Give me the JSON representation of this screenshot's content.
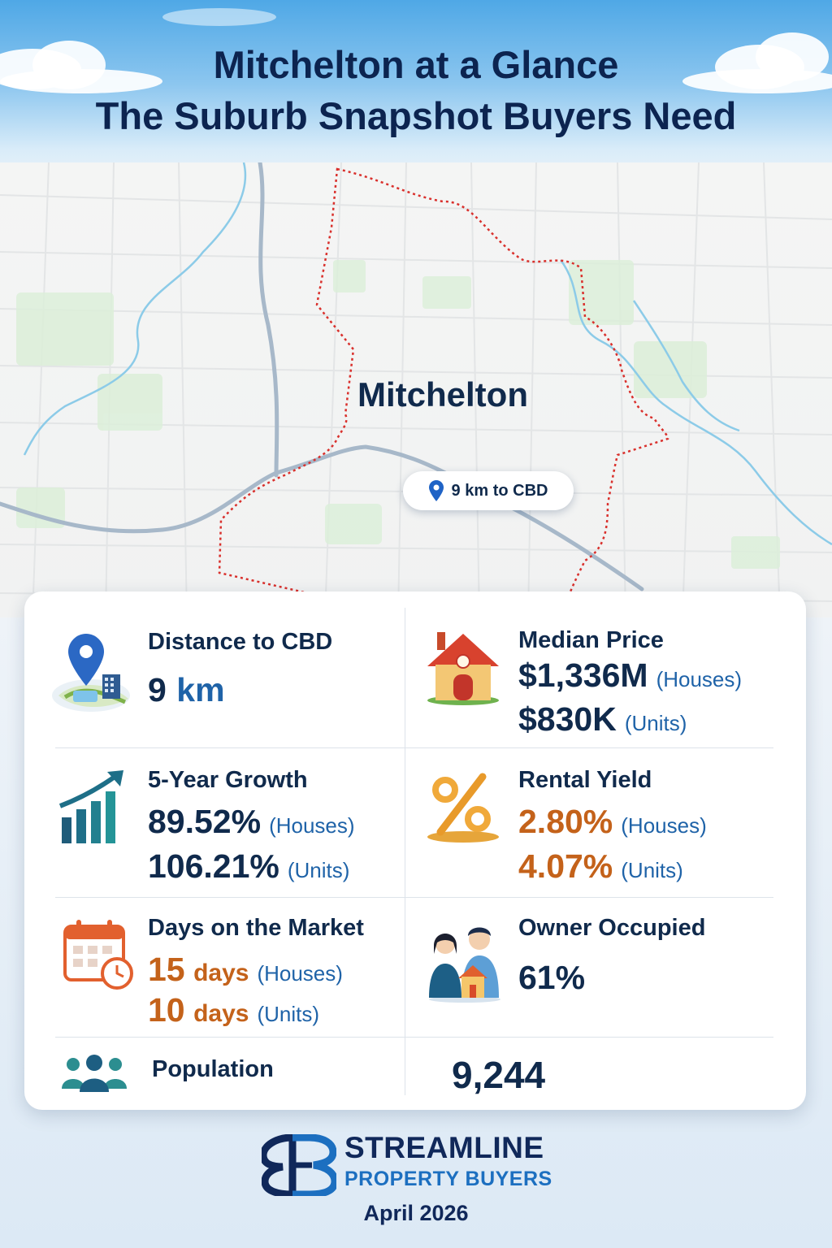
{
  "header": {
    "title_line1": "Mitchelton at a Glance",
    "title_line2": "The Suburb Snapshot Buyers Need"
  },
  "map": {
    "suburb_name": "Mitchelton",
    "cbd_marker_text": "9 km to CBD"
  },
  "stats": {
    "distance": {
      "label": "Distance to CBD",
      "value": "9",
      "unit": "km",
      "icon": "map-pin-city-icon"
    },
    "median_price": {
      "label": "Median Price",
      "houses_value": "$1,336M",
      "houses_note": "(Houses)",
      "units_value": "$830K",
      "units_note": "(Units)",
      "icon": "house-icon"
    },
    "growth": {
      "label": "5-Year Growth",
      "houses_value": "89.52%",
      "houses_note": "(Houses)",
      "units_value": "106.21%",
      "units_note": "(Units)",
      "icon": "growth-chart-icon"
    },
    "rental_yield": {
      "label": "Rental Yield",
      "houses_value": "2.80%",
      "houses_note": "(Houses)",
      "units_value": "4.07%",
      "units_note": "(Units)",
      "icon": "percent-icon"
    },
    "days_on_market": {
      "label": "Days on the Market",
      "houses_value": "15",
      "houses_unit": "days",
      "houses_note": "(Houses)",
      "units_value": "10",
      "units_unit": "days",
      "units_note": "(Units)",
      "icon": "calendar-clock-icon"
    },
    "owner_occupied": {
      "label": "Owner Occupied",
      "value": "61%",
      "icon": "family-house-icon"
    },
    "population": {
      "label": "Population",
      "value": "9,244",
      "icon": "people-group-icon"
    }
  },
  "footer": {
    "brand_line1": "STREAMLINE",
    "brand_line2": "PROPERTY BUYERS",
    "date": "April 2026"
  },
  "colors": {
    "navy": "#102a4c",
    "blue": "#1f63a8",
    "orange": "#c4621a",
    "boundary": "#d9302c"
  }
}
